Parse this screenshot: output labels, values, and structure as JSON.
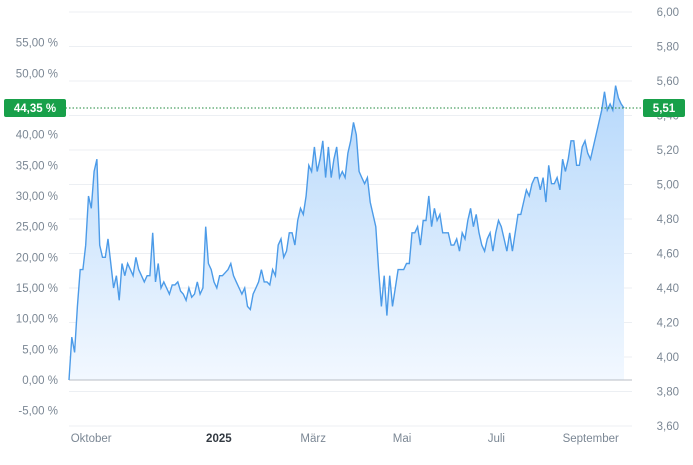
{
  "chart_data": {
    "type": "area",
    "title": "",
    "xlabel": "",
    "ylabel": "",
    "y_left": {
      "unit": "%",
      "range": [
        -7.5,
        60
      ],
      "ticks": [
        "-5,00 %",
        "0,00 %",
        "5,00 %",
        "10,00 %",
        "15,00 %",
        "20,00 %",
        "25,00 %",
        "30,00 %",
        "35,00 %",
        "40,00 %",
        "45,00 %",
        "50,00 %",
        "55,00 %"
      ],
      "tick_values": [
        -5,
        0,
        5,
        10,
        15,
        20,
        25,
        30,
        35,
        40,
        45,
        50,
        55
      ]
    },
    "y_right": {
      "range": [
        3.6,
        6.0
      ],
      "ticks": [
        "3,60",
        "3,80",
        "4,00",
        "4,20",
        "4,40",
        "4,60",
        "4,80",
        "5,00",
        "5,20",
        "5,40",
        "5,60",
        "5,80",
        "6,00"
      ],
      "tick_values": [
        3.6,
        3.8,
        4.0,
        4.2,
        4.4,
        4.6,
        4.8,
        5.0,
        5.2,
        5.4,
        5.6,
        5.8,
        6.0
      ]
    },
    "x_ticks": [
      {
        "label": "Oktober",
        "t": 0.04,
        "bold": false
      },
      {
        "label": "2025",
        "t": 0.27,
        "bold": true
      },
      {
        "label": "März",
        "t": 0.44,
        "bold": false
      },
      {
        "label": "Mai",
        "t": 0.6,
        "bold": false
      },
      {
        "label": "Juli",
        "t": 0.77,
        "bold": false
      },
      {
        "label": "September",
        "t": 0.94,
        "bold": false
      }
    ],
    "series": [
      {
        "values_pct": [
          0,
          7,
          4.5,
          12,
          18,
          18,
          22,
          30,
          28,
          34,
          36,
          22,
          20,
          20,
          23,
          19,
          15,
          17,
          13,
          19,
          17,
          19,
          18,
          17,
          20,
          18,
          17,
          16,
          17,
          17,
          24,
          16,
          19,
          15,
          16,
          15,
          14,
          15.5,
          15.5,
          16,
          14.5,
          14,
          13,
          15,
          13.5,
          14,
          16,
          14,
          15,
          25,
          19,
          18,
          16,
          15,
          17,
          17,
          17.5,
          18,
          19,
          17,
          16,
          15,
          14,
          15,
          12,
          11.5,
          14,
          15,
          16,
          18,
          16,
          16,
          15.5,
          18,
          17,
          22,
          23,
          20,
          21,
          24,
          24,
          22,
          26,
          28,
          27,
          30,
          35,
          34,
          38,
          34,
          36,
          39,
          33,
          38,
          33,
          36,
          38,
          33,
          34,
          33,
          37,
          39,
          42,
          40,
          34,
          33,
          32,
          33,
          29,
          27,
          25,
          18,
          12,
          17,
          10.5,
          17,
          12,
          15,
          18,
          18,
          18,
          19,
          19,
          24,
          24,
          25,
          22,
          26,
          26,
          30,
          25,
          28,
          26,
          27,
          24,
          24,
          24,
          22,
          22,
          23,
          21,
          24,
          23,
          26,
          28,
          25,
          27,
          24,
          22,
          21,
          23,
          24,
          21,
          24,
          26,
          25,
          23,
          21,
          24,
          21,
          24,
          27,
          27,
          29,
          31,
          30,
          32,
          33,
          33,
          31,
          33,
          29,
          35,
          32,
          32,
          33,
          31,
          36,
          34,
          36,
          39,
          39,
          35,
          35,
          38,
          39,
          37,
          36,
          38,
          40,
          42,
          44,
          47,
          44,
          45,
          44,
          48,
          46,
          45,
          44.35
        ],
        "current_pct_label": "44,35 %",
        "current_price_label": "5,51",
        "current_pct": 44.35
      }
    ],
    "colors": {
      "line": "#4c9be8",
      "area_top": "#b6d8fb",
      "area_bottom": "#f2f8ff",
      "badge": "#18a04a",
      "zero_line": "#b8bec6",
      "dotted": "#1f8a3c"
    },
    "grid": true
  }
}
